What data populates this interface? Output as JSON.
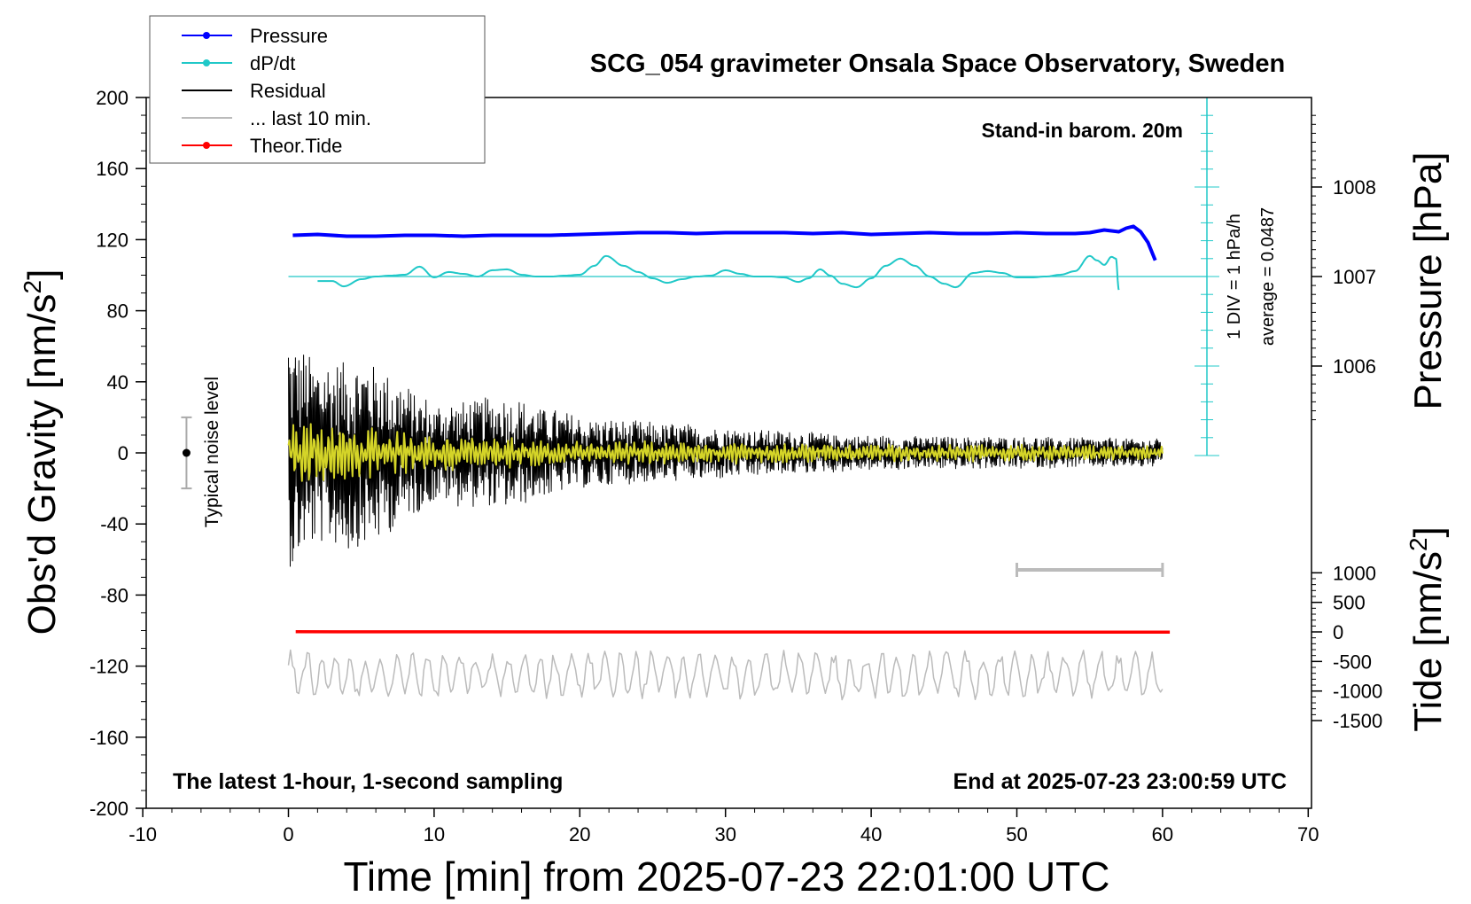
{
  "chart_data": {
    "type": "line",
    "title": "SCG_054 gravimeter Onsala Space Observatory, Sweden",
    "xlabel": "Time [min] from 2025-07-23 22:01:00 UTC",
    "xlim": [
      -10,
      70
    ],
    "xticks": [
      "-10",
      "0",
      "10",
      "20",
      "30",
      "40",
      "50",
      "60",
      "70"
    ],
    "ylabel_left": "Obs'd Gravity [nm/s",
    "ylabel_left_sup": "2",
    "ylabel_left_end": "]",
    "ylim_left": [
      -200,
      200
    ],
    "yticks_left": [
      "200",
      "160",
      "120",
      "80",
      "40",
      "0",
      "-40",
      "-80",
      "-120",
      "-160",
      "-200"
    ],
    "ylabel_pressure": "Pressure [hPa]",
    "yticks_pressure": [
      "1008",
      "1007",
      "1006"
    ],
    "ylabel_tide": "Tide [nm/s",
    "ylabel_tide_sup": "2",
    "ylabel_tide_end": "]",
    "yticks_tide": [
      "1000",
      "500",
      "0",
      "-500",
      "-1000",
      "-1500"
    ],
    "annotations": {
      "barometer": "Stand-in barom. 20m",
      "div_label": "1 DIV = 1 hPa/h",
      "average_label": "average = 0.0487",
      "noise_label": "Typical noise level",
      "bottom_left": "The latest 1-hour, 1-second sampling",
      "bottom_right": "End at 2025-07-23 23:00:59 UTC"
    },
    "noise_level": {
      "x": -7,
      "center": 0,
      "half_range": 20
    },
    "last_10_min_bar": [
      50,
      60
    ],
    "legend": [
      {
        "label": "Pressure",
        "color": "#0000ff",
        "marker": true
      },
      {
        "label": "dP/dt",
        "color": "#20c8c8",
        "marker": true
      },
      {
        "label": "Residual",
        "color": "#000000",
        "marker": false
      },
      {
        "label": "... last 10 min.",
        "color": "#bbbbbb",
        "marker": false
      },
      {
        "label": "Theor.Tide",
        "color": "#ff0000",
        "marker": true
      }
    ],
    "series": [
      {
        "name": "Pressure",
        "axis": "pressure_hPa",
        "color": "#0000ff",
        "x": [
          0.3,
          2,
          4,
          6,
          8,
          10,
          12,
          14,
          16,
          18,
          20,
          22,
          24,
          26,
          28,
          30,
          32,
          34,
          36,
          38,
          40,
          42,
          44,
          46,
          48,
          50,
          52,
          54,
          55,
          56,
          57,
          57.5,
          58,
          58.5,
          59,
          59.5
        ],
        "values": [
          1007.46,
          1007.47,
          1007.45,
          1007.45,
          1007.46,
          1007.46,
          1007.45,
          1007.46,
          1007.46,
          1007.46,
          1007.47,
          1007.48,
          1007.49,
          1007.49,
          1007.48,
          1007.49,
          1007.49,
          1007.49,
          1007.48,
          1007.49,
          1007.47,
          1007.48,
          1007.49,
          1007.48,
          1007.48,
          1007.49,
          1007.48,
          1007.48,
          1007.49,
          1007.52,
          1007.5,
          1007.54,
          1007.56,
          1007.5,
          1007.38,
          1007.18
        ]
      },
      {
        "name": "dP/dt",
        "axis": "dpdt_hPa_per_h",
        "color": "#20c8c8",
        "x": [
          2,
          3,
          3.8,
          5,
          6,
          7,
          8,
          9,
          10,
          11,
          12,
          13,
          14,
          15,
          16,
          17,
          18,
          19,
          20,
          21,
          21.8,
          23,
          24,
          25,
          26,
          27,
          28,
          29,
          30,
          31,
          32,
          33,
          34,
          35,
          35.7,
          36.5,
          37.2,
          38,
          39,
          40,
          41,
          42,
          43,
          44,
          45,
          45.8,
          47,
          48,
          49,
          50,
          51,
          52,
          53,
          54,
          55,
          55.5,
          56,
          56.5,
          56.8,
          57
        ],
        "values": [
          -0.05,
          -0.05,
          -0.11,
          -0.03,
          0.0,
          0.01,
          0.02,
          0.11,
          -0.01,
          0.05,
          0.03,
          0.0,
          0.07,
          0.08,
          0.02,
          0.0,
          0.0,
          0.01,
          0.02,
          0.12,
          0.23,
          0.12,
          0.05,
          -0.02,
          -0.07,
          -0.03,
          0.0,
          0.01,
          0.07,
          0.03,
          0.0,
          0.0,
          -0.01,
          -0.06,
          -0.02,
          0.08,
          0.01,
          -0.08,
          -0.12,
          -0.02,
          0.12,
          0.2,
          0.12,
          0.0,
          -0.08,
          -0.12,
          0.04,
          0.06,
          0.04,
          -0.01,
          -0.01,
          0.0,
          0.02,
          0.06,
          0.23,
          0.18,
          0.13,
          0.22,
          0.2,
          -0.15
        ]
      },
      {
        "name": "Residual",
        "axis": "gravity_nm_s2",
        "color": "#000000",
        "samples": 3600,
        "x_range": [
          0,
          60
        ],
        "envelope_x": [
          0,
          2,
          5,
          10,
          15,
          20,
          30,
          40,
          50,
          60
        ],
        "envelope_values": [
          85,
          65,
          70,
          35,
          40,
          25,
          18,
          12,
          11,
          10
        ]
      },
      {
        "name": "Filtered residual",
        "axis": "gravity_nm_s2",
        "color": "#d4d428",
        "x_range": [
          0,
          60
        ],
        "envelope_x": [
          0,
          5,
          10,
          20,
          40,
          60
        ],
        "envelope_values": [
          18,
          14,
          10,
          7,
          5,
          4
        ]
      },
      {
        "name": "... last 10 min.",
        "axis": "gravity_nm_s2",
        "color": "#bbbbbb",
        "x_range": [
          0,
          60
        ],
        "offset": -125,
        "envelope_values": [
          13
        ]
      },
      {
        "name": "Theor.Tide",
        "axis": "tide_nm_s2",
        "color": "#ff0000",
        "x": [
          0.5,
          10,
          20,
          30,
          40,
          50,
          60.5
        ],
        "values": [
          3,
          2,
          0,
          -2,
          -3,
          -4,
          -4
        ]
      }
    ],
    "grid": false,
    "legend_position": "top-left"
  }
}
